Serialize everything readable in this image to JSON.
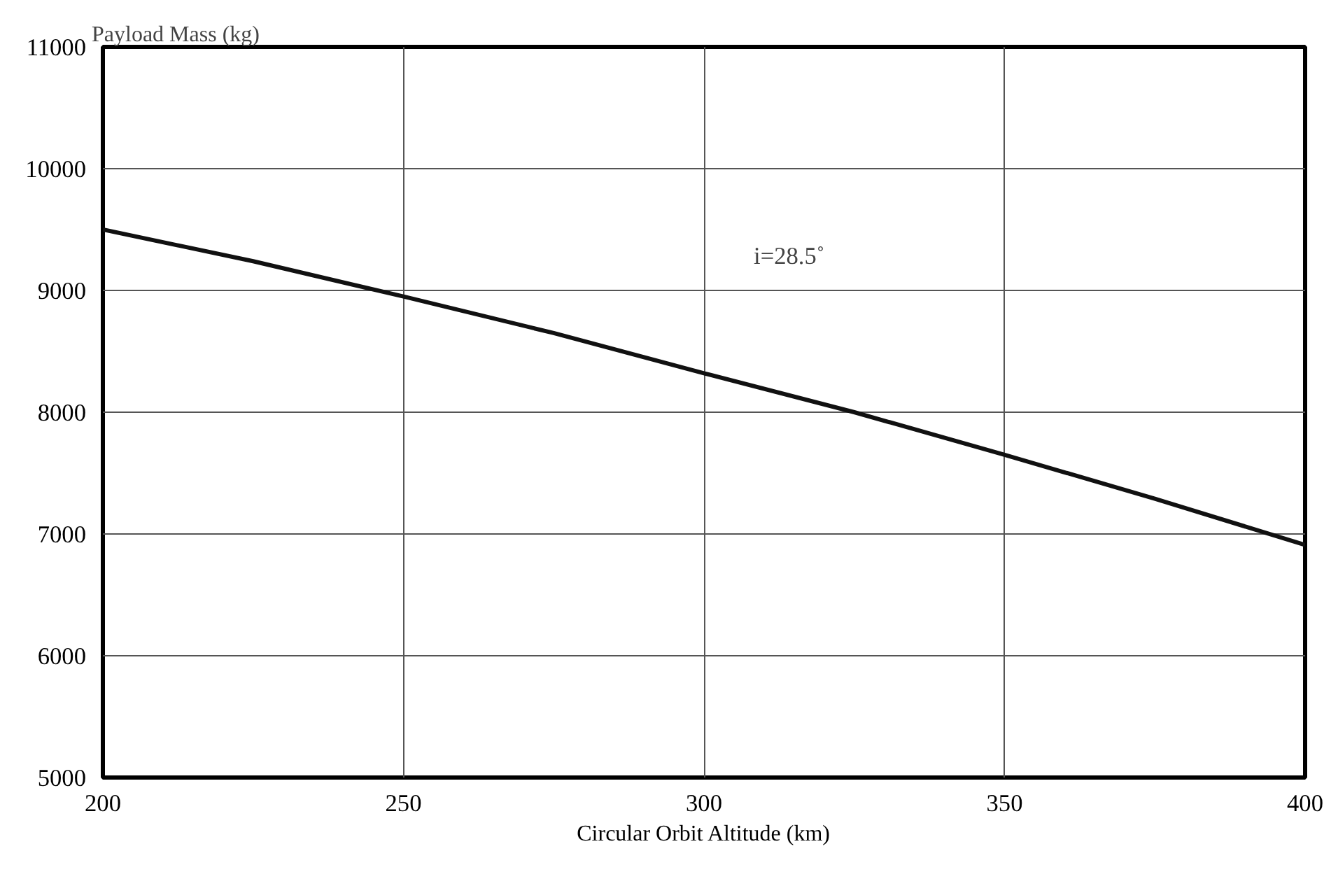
{
  "chart_data": {
    "type": "line",
    "xlabel": "Circular Orbit Altitude (km)",
    "ylabel": "Payload Mass (kg)",
    "x": [
      200,
      225,
      250,
      275,
      300,
      325,
      350,
      375,
      400
    ],
    "series": [
      {
        "color": "#111111",
        "values": [
          9500,
          9240,
          8950,
          8650,
          8320,
          8000,
          7650,
          7290,
          6910
        ]
      }
    ],
    "xlim": [
      200,
      400
    ],
    "ylim": [
      5000,
      11000
    ],
    "xticks": [
      200,
      250,
      300,
      350,
      400
    ],
    "yticks": [
      5000,
      6000,
      7000,
      8000,
      9000,
      10000,
      11000
    ],
    "grid": true,
    "marker": "none",
    "line_style": "solid",
    "annotations": [
      "i=28.5˚"
    ]
  }
}
